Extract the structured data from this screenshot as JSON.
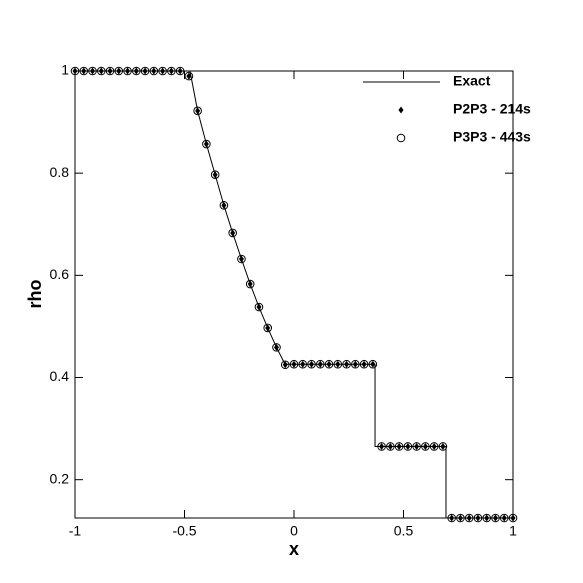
{
  "chart_data": {
    "type": "line",
    "xlabel": "x",
    "ylabel": "rho",
    "xlim": [
      -1,
      1
    ],
    "ylim": [
      0.125,
      1
    ],
    "xticks": [
      -1,
      -0.5,
      0,
      0.5,
      1
    ],
    "yticks": [
      0.2,
      0.4,
      0.6,
      0.8,
      1
    ],
    "legend": "top-right",
    "series": [
      {
        "name": "Exact",
        "color": "#000000",
        "style": "line",
        "x": [
          -1,
          -0.475,
          -0.44,
          -0.4,
          -0.36,
          -0.32,
          -0.28,
          -0.24,
          -0.2,
          -0.16,
          -0.12,
          -0.08,
          -0.041,
          0.37,
          0.37,
          0.694,
          0.694,
          1
        ],
        "values": [
          1,
          1,
          0.922,
          0.857,
          0.797,
          0.737,
          0.683,
          0.632,
          0.583,
          0.538,
          0.497,
          0.459,
          0.426,
          0.426,
          0.265,
          0.265,
          0.125,
          0.125
        ]
      },
      {
        "name": "P2P3 - 214s",
        "color": "#000000",
        "style": "diamond",
        "x": [
          -1,
          -0.96,
          -0.92,
          -0.88,
          -0.84,
          -0.8,
          -0.76,
          -0.72,
          -0.68,
          -0.64,
          -0.6,
          -0.56,
          -0.52,
          -0.48,
          -0.44,
          -0.4,
          -0.36,
          -0.32,
          -0.28,
          -0.24,
          -0.2,
          -0.16,
          -0.12,
          -0.08,
          -0.04,
          0,
          0.04,
          0.08,
          0.12,
          0.16,
          0.2,
          0.24,
          0.28,
          0.32,
          0.36,
          0.4,
          0.44,
          0.48,
          0.52,
          0.56,
          0.6,
          0.64,
          0.68,
          0.72,
          0.76,
          0.8,
          0.84,
          0.88,
          0.92,
          0.96,
          1
        ],
        "values": [
          1,
          1,
          1,
          1,
          1,
          1,
          1,
          1,
          1,
          1,
          1,
          1,
          1,
          0.99,
          0.922,
          0.857,
          0.797,
          0.737,
          0.683,
          0.632,
          0.583,
          0.538,
          0.497,
          0.459,
          0.425,
          0.426,
          0.426,
          0.426,
          0.426,
          0.426,
          0.426,
          0.426,
          0.426,
          0.426,
          0.426,
          0.265,
          0.265,
          0.265,
          0.265,
          0.265,
          0.265,
          0.265,
          0.265,
          0.125,
          0.125,
          0.125,
          0.125,
          0.125,
          0.125,
          0.125,
          0.125
        ]
      },
      {
        "name": "P3P3 - 443s",
        "color": "#000000",
        "style": "circle",
        "x": [
          -1,
          -0.96,
          -0.92,
          -0.88,
          -0.84,
          -0.8,
          -0.76,
          -0.72,
          -0.68,
          -0.64,
          -0.6,
          -0.56,
          -0.52,
          -0.48,
          -0.44,
          -0.4,
          -0.36,
          -0.32,
          -0.28,
          -0.24,
          -0.2,
          -0.16,
          -0.12,
          -0.08,
          -0.04,
          0,
          0.04,
          0.08,
          0.12,
          0.16,
          0.2,
          0.24,
          0.28,
          0.32,
          0.36,
          0.4,
          0.44,
          0.48,
          0.52,
          0.56,
          0.6,
          0.64,
          0.68,
          0.72,
          0.76,
          0.8,
          0.84,
          0.88,
          0.92,
          0.96,
          1
        ],
        "values": [
          1,
          1,
          1,
          1,
          1,
          1,
          1,
          1,
          1,
          1,
          1,
          1,
          1,
          0.99,
          0.922,
          0.857,
          0.797,
          0.737,
          0.683,
          0.632,
          0.583,
          0.538,
          0.497,
          0.459,
          0.425,
          0.426,
          0.426,
          0.426,
          0.426,
          0.426,
          0.426,
          0.426,
          0.426,
          0.426,
          0.426,
          0.265,
          0.265,
          0.265,
          0.265,
          0.265,
          0.265,
          0.265,
          0.265,
          0.125,
          0.125,
          0.125,
          0.125,
          0.125,
          0.125,
          0.125,
          0.125
        ]
      }
    ]
  }
}
